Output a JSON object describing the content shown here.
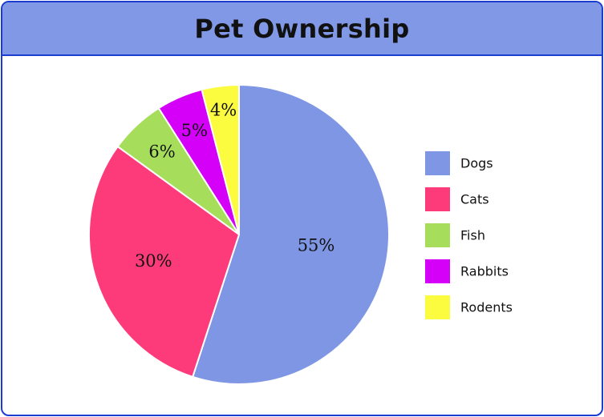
{
  "chart_data": {
    "type": "pie",
    "title": "Pet Ownership",
    "categories": [
      "Dogs",
      "Cats",
      "Fish",
      "Rabbits",
      "Rodents"
    ],
    "values": [
      55,
      30,
      6,
      5,
      4
    ],
    "labels": [
      "55%",
      "30%",
      "6%",
      "5%",
      "4%"
    ],
    "colors": [
      "#7f96e4",
      "#fd3b7b",
      "#a6de5c",
      "#d400f7",
      "#fbfb3f"
    ],
    "start": "12 o'clock",
    "direction": "clockwise",
    "legend_position": "right"
  }
}
